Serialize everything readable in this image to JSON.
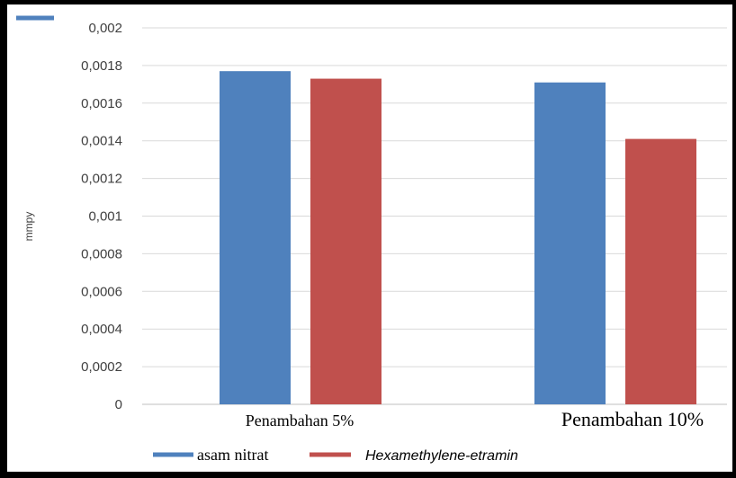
{
  "chart_data": {
    "type": "bar",
    "title": "",
    "xlabel": "",
    "ylabel": "mmpy",
    "categories": [
      "Penambahan 5%",
      "Penambahan 10%"
    ],
    "series": [
      {
        "name": "asam nitrat",
        "values": [
          0.00177,
          0.00171
        ],
        "color": "#4f81bd"
      },
      {
        "name": "Hexamethylene-etramin",
        "values": [
          0.00173,
          0.00141
        ],
        "color": "#c0504d"
      }
    ],
    "ylim": [
      0,
      0.002
    ],
    "yticks": [
      "0",
      "0,0002",
      "0,0004",
      "0,0006",
      "0,0008",
      "0,001",
      "0,0012",
      "0,0014",
      "0,0016",
      "0,0018",
      "0,002"
    ],
    "grid": true,
    "legend": "bottom-left"
  }
}
